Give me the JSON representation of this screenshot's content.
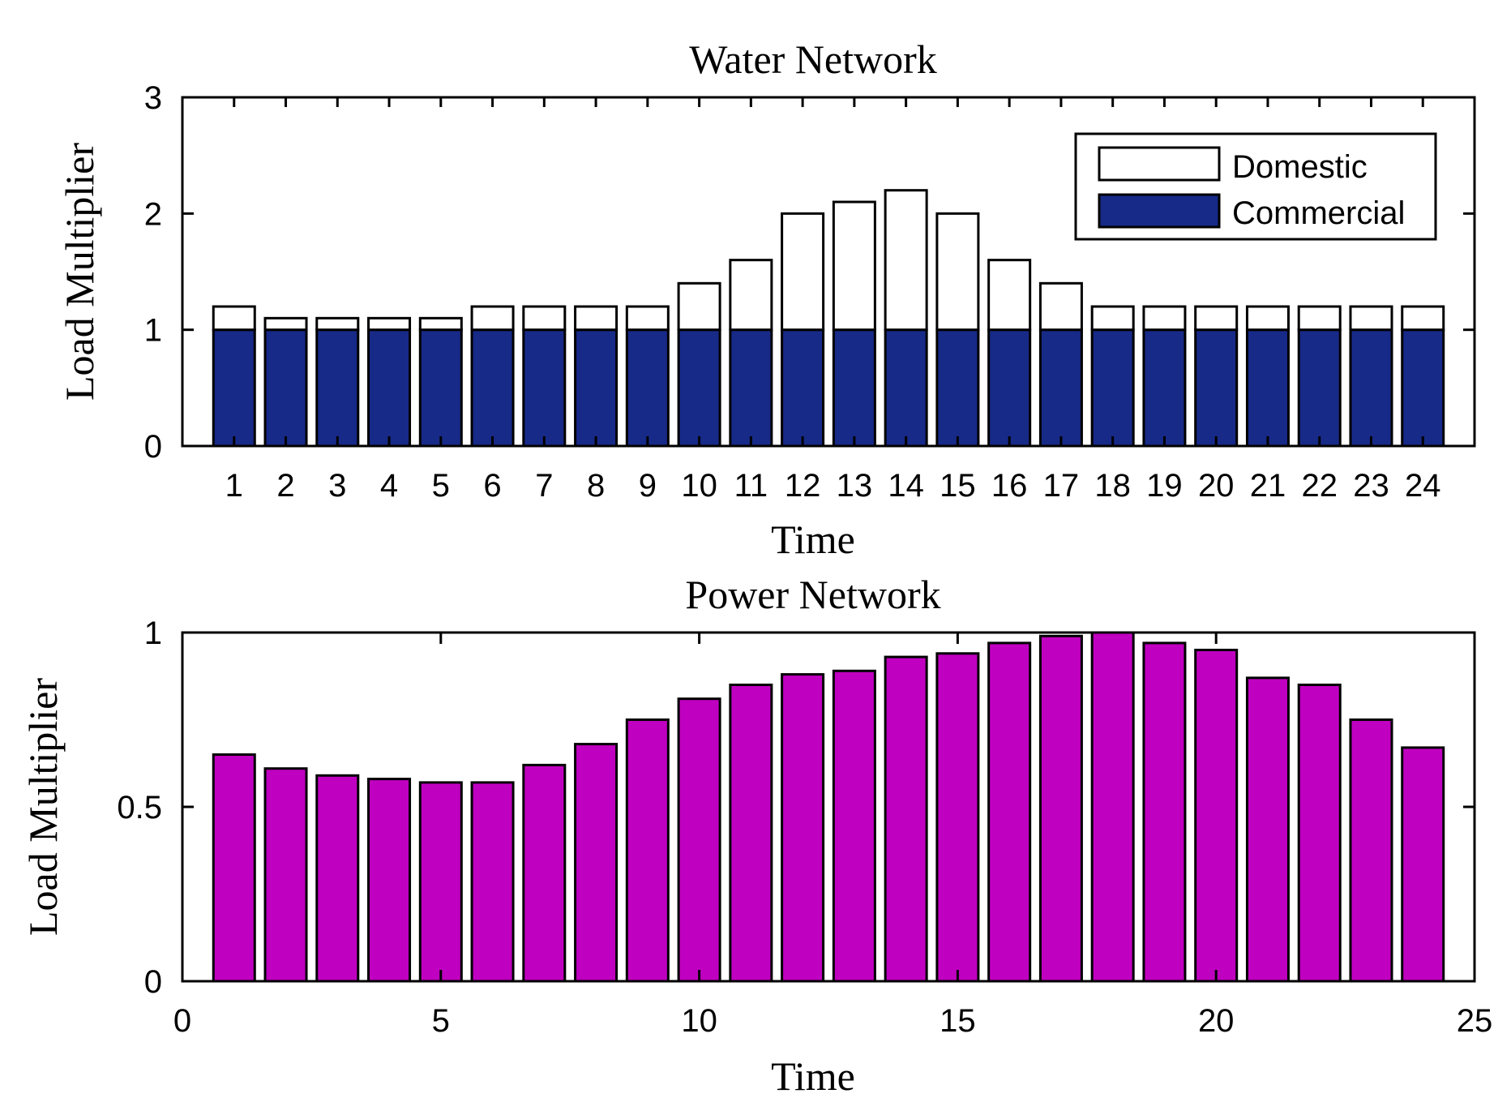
{
  "chart_data": [
    {
      "type": "bar",
      "stacked": true,
      "title": "Water Network",
      "xlabel": "Time",
      "ylabel": "Load Multiplier",
      "categories": [
        "1",
        "2",
        "3",
        "4",
        "5",
        "6",
        "7",
        "8",
        "9",
        "10",
        "11",
        "12",
        "13",
        "14",
        "15",
        "16",
        "17",
        "18",
        "19",
        "20",
        "21",
        "22",
        "23",
        "24"
      ],
      "ylim": [
        0,
        3
      ],
      "yticks": [
        "0",
        "1",
        "2",
        "3"
      ],
      "legend_position": "top-right",
      "series": [
        {
          "name": "Commercial",
          "color": "#172a88",
          "values": [
            1,
            1,
            1,
            1,
            1,
            1,
            1,
            1,
            1,
            1,
            1,
            1,
            1,
            1,
            1,
            1,
            1,
            1,
            1,
            1,
            1,
            1,
            1,
            1
          ]
        },
        {
          "name": "Domestic",
          "color": "#ffffff",
          "values": [
            0.2,
            0.1,
            0.1,
            0.1,
            0.1,
            0.2,
            0.2,
            0.2,
            0.2,
            0.4,
            0.6,
            1.0,
            1.1,
            1.2,
            1.0,
            0.6,
            0.4,
            0.2,
            0.2,
            0.2,
            0.2,
            0.2,
            0.2,
            0.2
          ]
        }
      ]
    },
    {
      "type": "bar",
      "title": "Power Network",
      "xlabel": "Time",
      "ylabel": "Load Multiplier",
      "x": [
        1,
        2,
        3,
        4,
        5,
        6,
        7,
        8,
        9,
        10,
        11,
        12,
        13,
        14,
        15,
        16,
        17,
        18,
        19,
        20,
        21,
        22,
        23,
        24
      ],
      "xlim": [
        0,
        25
      ],
      "xticks": [
        "0",
        "5",
        "10",
        "15",
        "20",
        "25"
      ],
      "ylim": [
        0,
        1
      ],
      "yticks": [
        "0",
        "0.5",
        "1"
      ],
      "color": "#c000c0",
      "values": [
        0.65,
        0.61,
        0.59,
        0.58,
        0.57,
        0.57,
        0.62,
        0.68,
        0.75,
        0.81,
        0.85,
        0.88,
        0.89,
        0.93,
        0.94,
        0.97,
        0.99,
        1.0,
        0.97,
        0.95,
        0.87,
        0.85,
        0.75,
        0.67
      ]
    }
  ]
}
